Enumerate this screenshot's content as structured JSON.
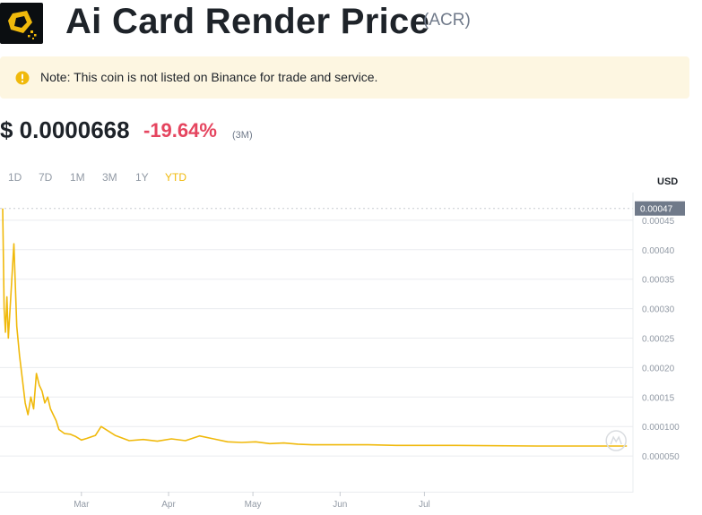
{
  "header": {
    "title": "Ai Card Render Price",
    "symbol": "(ACR)"
  },
  "note": {
    "text": "Note: This coin is not listed on Binance for trade and service."
  },
  "price": {
    "value": "$ 0.0000668",
    "change": "-19.64%",
    "period": "(3M)"
  },
  "ranges": [
    "1D",
    "7D",
    "1M",
    "3M",
    "1Y",
    "YTD"
  ],
  "active_range": "YTD",
  "colors": {
    "line": "#f0b90b",
    "negative": "#e5455f",
    "tag_bg": "#707a8a"
  },
  "chart_data": {
    "type": "line",
    "currency": "USD",
    "current_value_label": "0.00047",
    "y_ticks": [
      "0.00045",
      "0.00040",
      "0.00035",
      "0.00030",
      "0.00025",
      "0.00020",
      "0.00015",
      "0.000100",
      "0.000050"
    ],
    "x_ticks": [
      "Mar",
      "Apr",
      "May",
      "Jun",
      "Jul"
    ],
    "ylim": [
      0,
      0.0005
    ],
    "grid": true,
    "series": [
      {
        "x": [
          0,
          0.5,
          1,
          1.5,
          2,
          3,
          4,
          5,
          6,
          7,
          8,
          9,
          10,
          11,
          12,
          13,
          14,
          15,
          16,
          17,
          18,
          19,
          20,
          22,
          24,
          25,
          26,
          28,
          30,
          33,
          35,
          40,
          45,
          50,
          55,
          60,
          65,
          70,
          75,
          80,
          85,
          90,
          95,
          100,
          105,
          110,
          115,
          120,
          125,
          130,
          140,
          160,
          190,
          222
        ],
        "y": [
          0.00047,
          0.0003,
          0.00026,
          0.00032,
          0.00025,
          0.00033,
          0.00041,
          0.00027,
          0.00022,
          0.00018,
          0.00014,
          0.00012,
          0.00015,
          0.00013,
          0.00019,
          0.00017,
          0.00016,
          0.00014,
          0.00015,
          0.00013,
          0.00012,
          0.00011,
          9.5e-05,
          8.8e-05,
          8.7e-05,
          8.5e-05,
          8.3e-05,
          7.7e-05,
          8e-05,
          8.5e-05,
          0.0001,
          8.5e-05,
          7.6e-05,
          7.8e-05,
          7.5e-05,
          7.9e-05,
          7.6e-05,
          8.4e-05,
          7.9e-05,
          7.4e-05,
          7.3e-05,
          7.4e-05,
          7.1e-05,
          7.2e-05,
          7e-05,
          6.9e-05,
          6.9e-05,
          6.9e-05,
          6.9e-05,
          6.9e-05,
          6.8e-05,
          6.8e-05,
          6.69e-05,
          6.68e-05
        ]
      }
    ]
  }
}
